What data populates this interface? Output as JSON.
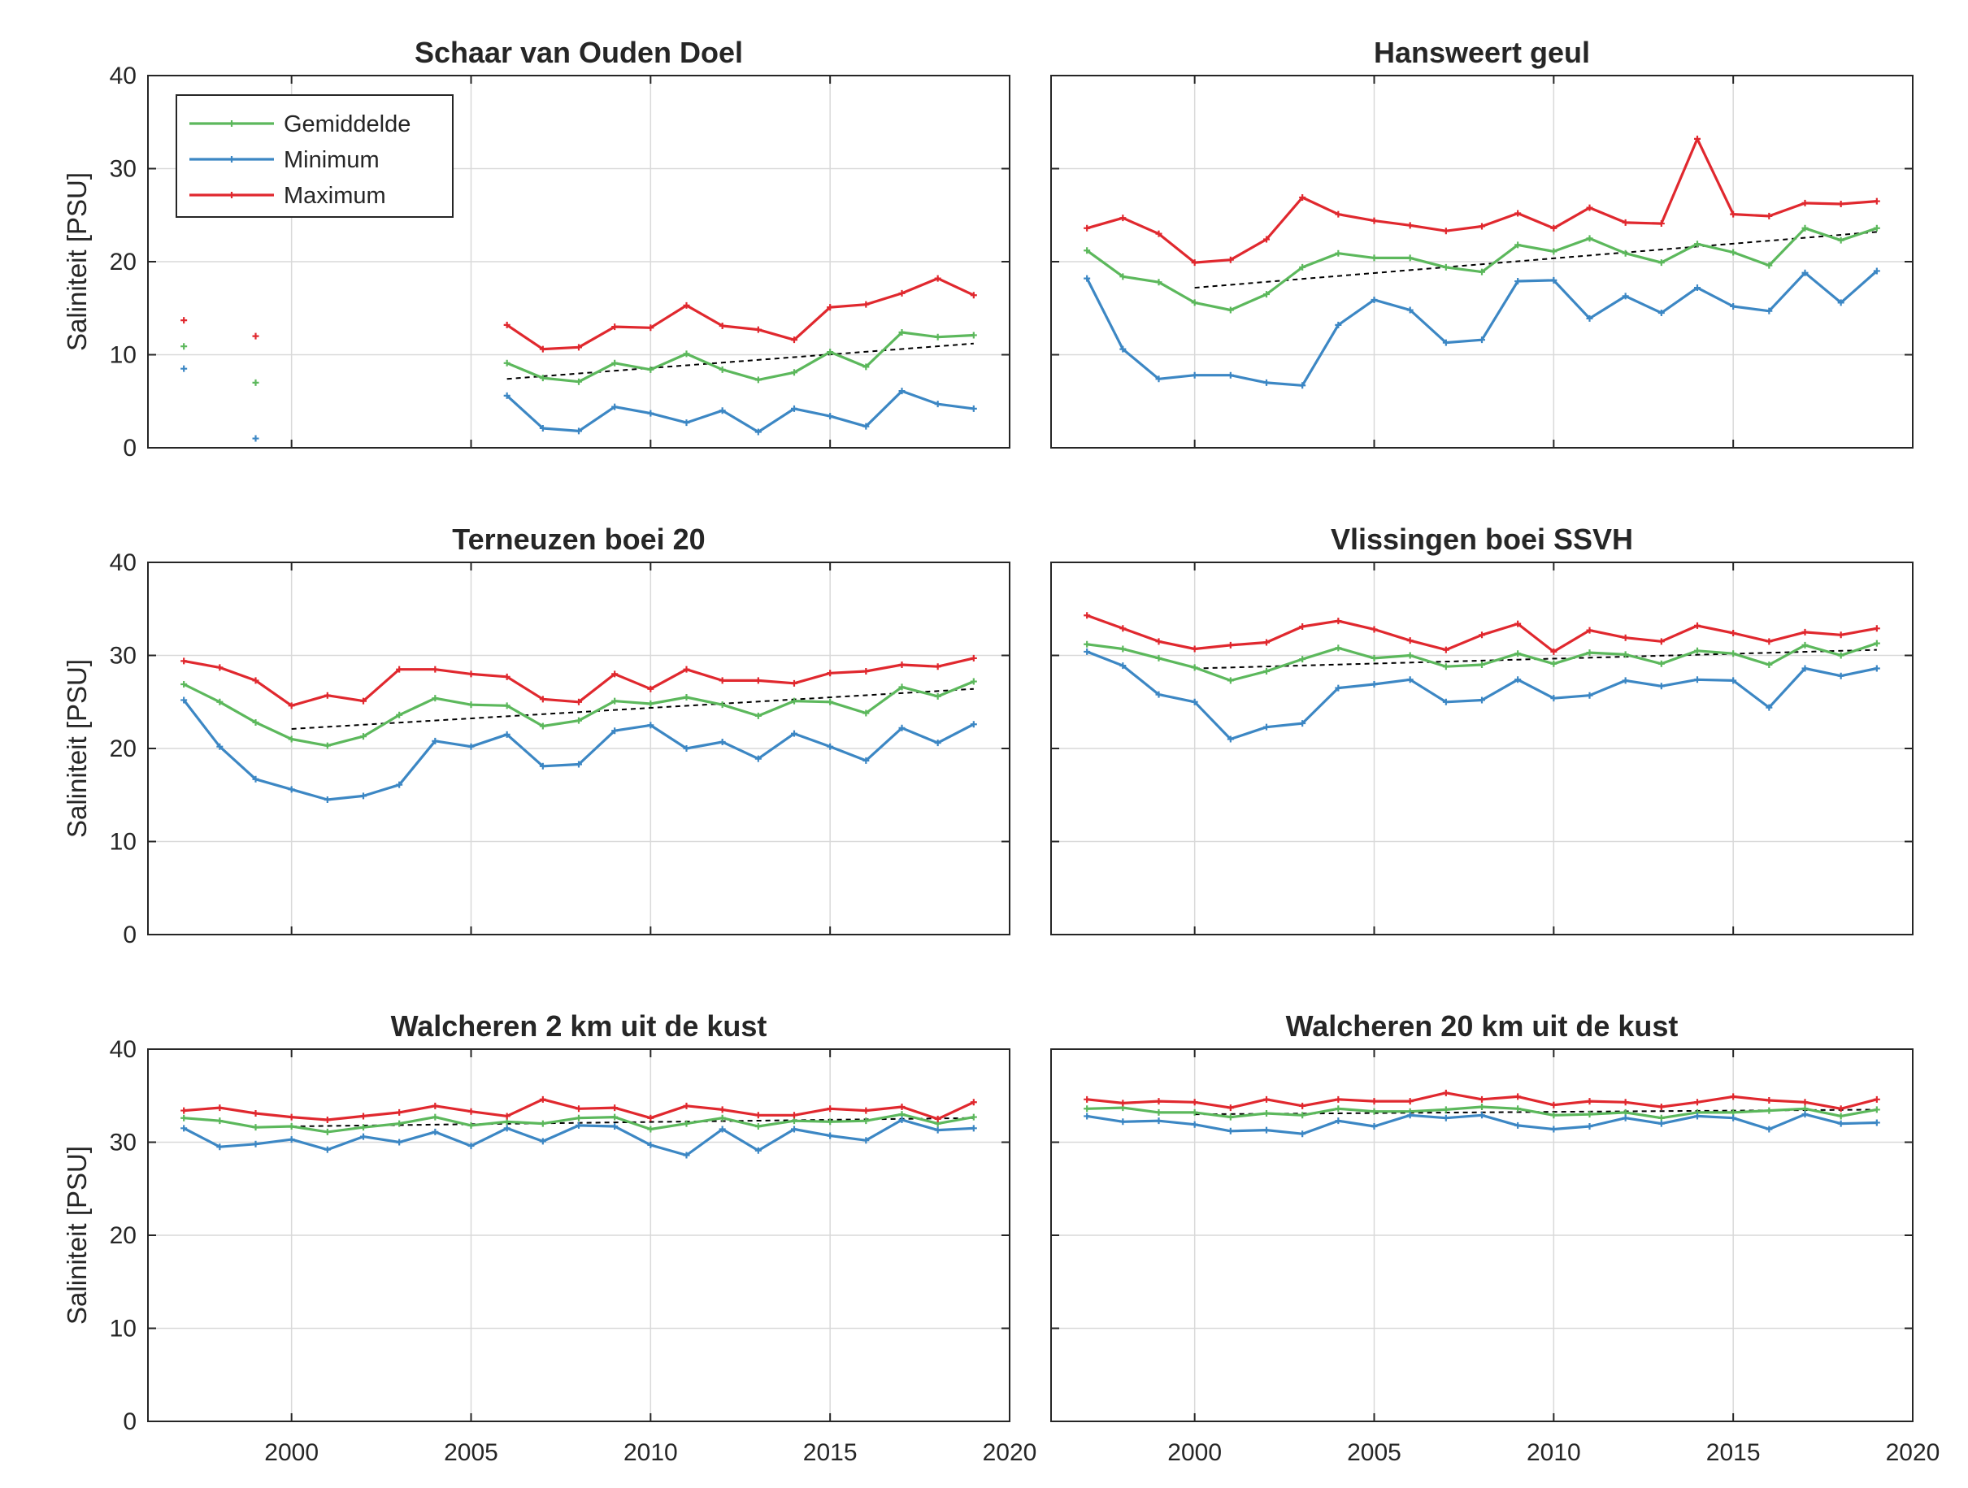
{
  "colors": {
    "Gemiddelde": "#5cb85c",
    "Minimum": "#3c87c4",
    "Maximum": "#e0282e",
    "trend": "#000000",
    "grid": "#d9d9d9",
    "axes": "#262626"
  },
  "legend": {
    "entries": [
      "Gemiddelde",
      "Minimum",
      "Maximum"
    ],
    "placement": "top-left of first panel"
  },
  "chart_data": [
    {
      "type": "line",
      "title": "Schaar van Ouden Doel",
      "ylabel": "Saliniteit [PSU]",
      "xlabel": "",
      "xlim": [
        1996,
        2020
      ],
      "ylim": [
        0,
        40
      ],
      "xticks": [
        2000,
        2005,
        2010,
        2015,
        2020
      ],
      "xtick_labels": [],
      "yticks": [
        0,
        10,
        20,
        30,
        40
      ],
      "ytick_labels": [
        "0",
        "10",
        "20",
        "30",
        "40"
      ],
      "grid": true,
      "x": [
        1997,
        1998,
        1999,
        2000,
        2001,
        2002,
        2003,
        2004,
        2005,
        2006,
        2007,
        2008,
        2009,
        2010,
        2011,
        2012,
        2013,
        2014,
        2015,
        2016,
        2017,
        2018,
        2019
      ],
      "series": [
        {
          "name": "Gemiddelde",
          "values": [
            10.9,
            null,
            7.0,
            null,
            null,
            null,
            null,
            null,
            null,
            9.1,
            7.5,
            7.1,
            9.1,
            8.4,
            10.1,
            8.4,
            7.3,
            8.1,
            10.3,
            8.7,
            12.4,
            11.9,
            12.1
          ]
        },
        {
          "name": "Minimum",
          "values": [
            8.5,
            null,
            1.0,
            null,
            null,
            null,
            null,
            null,
            null,
            5.6,
            2.1,
            1.8,
            4.4,
            3.7,
            2.7,
            4.0,
            1.7,
            4.2,
            3.4,
            2.3,
            6.1,
            4.7,
            4.2
          ]
        },
        {
          "name": "Maximum",
          "values": [
            13.7,
            null,
            12.0,
            null,
            null,
            null,
            null,
            null,
            null,
            13.2,
            10.6,
            10.8,
            13.0,
            12.9,
            15.3,
            13.1,
            12.7,
            11.6,
            15.1,
            15.4,
            16.6,
            18.2,
            16.4
          ]
        }
      ],
      "trend": {
        "x": [
          2006,
          2019
        ],
        "y": [
          7.4,
          11.2
        ]
      }
    },
    {
      "type": "line",
      "title": "Hansweert geul",
      "ylabel": "",
      "xlabel": "",
      "xlim": [
        1996,
        2020
      ],
      "ylim": [
        0,
        40
      ],
      "xticks": [
        2000,
        2005,
        2010,
        2015,
        2020
      ],
      "xtick_labels": [],
      "yticks": [
        0,
        10,
        20,
        30,
        40
      ],
      "ytick_labels": [],
      "grid": true,
      "x": [
        1997,
        1998,
        1999,
        2000,
        2001,
        2002,
        2003,
        2004,
        2005,
        2006,
        2007,
        2008,
        2009,
        2010,
        2011,
        2012,
        2013,
        2014,
        2015,
        2016,
        2017,
        2018,
        2019
      ],
      "series": [
        {
          "name": "Gemiddelde",
          "values": [
            21.2,
            18.4,
            17.8,
            15.6,
            14.8,
            16.5,
            19.4,
            20.9,
            20.4,
            20.4,
            19.4,
            18.9,
            21.8,
            21.1,
            22.5,
            20.9,
            19.9,
            21.9,
            21.0,
            19.6,
            23.6,
            22.3,
            23.6
          ]
        },
        {
          "name": "Minimum",
          "values": [
            18.2,
            10.6,
            7.4,
            7.8,
            7.8,
            7.0,
            6.7,
            13.2,
            15.9,
            14.8,
            11.3,
            11.6,
            17.9,
            18.0,
            13.9,
            16.3,
            14.5,
            17.2,
            15.2,
            14.7,
            18.8,
            15.6,
            19.0
          ]
        },
        {
          "name": "Maximum",
          "values": [
            23.6,
            24.7,
            23.0,
            19.9,
            20.2,
            22.4,
            26.9,
            25.1,
            24.4,
            23.9,
            23.3,
            23.8,
            25.2,
            23.6,
            25.8,
            24.2,
            24.1,
            33.2,
            25.1,
            24.9,
            26.3,
            26.2,
            26.5
          ]
        }
      ],
      "trend": {
        "x": [
          2000,
          2019
        ],
        "y": [
          17.2,
          23.2
        ]
      }
    },
    {
      "type": "line",
      "title": "Terneuzen boei 20",
      "ylabel": "Saliniteit [PSU]",
      "xlabel": "",
      "xlim": [
        1996,
        2020
      ],
      "ylim": [
        0,
        40
      ],
      "xticks": [
        2000,
        2005,
        2010,
        2015,
        2020
      ],
      "xtick_labels": [],
      "yticks": [
        0,
        10,
        20,
        30,
        40
      ],
      "ytick_labels": [
        "0",
        "10",
        "20",
        "30",
        "40"
      ],
      "grid": true,
      "x": [
        1997,
        1998,
        1999,
        2000,
        2001,
        2002,
        2003,
        2004,
        2005,
        2006,
        2007,
        2008,
        2009,
        2010,
        2011,
        2012,
        2013,
        2014,
        2015,
        2016,
        2017,
        2018,
        2019
      ],
      "series": [
        {
          "name": "Gemiddelde",
          "values": [
            26.9,
            25.0,
            22.8,
            21.0,
            20.3,
            21.3,
            23.6,
            25.4,
            24.7,
            24.6,
            22.4,
            23.0,
            25.1,
            24.8,
            25.5,
            24.7,
            23.5,
            25.1,
            25.0,
            23.8,
            26.6,
            25.6,
            27.2
          ]
        },
        {
          "name": "Minimum",
          "values": [
            25.2,
            20.2,
            16.7,
            15.6,
            14.5,
            14.9,
            16.1,
            20.8,
            20.2,
            21.5,
            18.1,
            18.3,
            21.9,
            22.5,
            20.0,
            20.7,
            18.9,
            21.6,
            20.2,
            18.7,
            22.2,
            20.6,
            22.6
          ]
        },
        {
          "name": "Maximum",
          "values": [
            29.4,
            28.7,
            27.3,
            24.6,
            25.7,
            25.1,
            28.5,
            28.5,
            28.0,
            27.7,
            25.3,
            25.0,
            28.0,
            26.4,
            28.5,
            27.3,
            27.3,
            27.0,
            28.1,
            28.3,
            29.0,
            28.8,
            29.7
          ]
        }
      ],
      "trend": {
        "x": [
          2000,
          2019
        ],
        "y": [
          22.1,
          26.4
        ]
      }
    },
    {
      "type": "line",
      "title": "Vlissingen boei SSVH",
      "ylabel": "",
      "xlabel": "",
      "xlim": [
        1996,
        2020
      ],
      "ylim": [
        0,
        40
      ],
      "xticks": [
        2000,
        2005,
        2010,
        2015,
        2020
      ],
      "xtick_labels": [],
      "yticks": [
        0,
        10,
        20,
        30,
        40
      ],
      "ytick_labels": [],
      "grid": true,
      "x": [
        1997,
        1998,
        1999,
        2000,
        2001,
        2002,
        2003,
        2004,
        2005,
        2006,
        2007,
        2008,
        2009,
        2010,
        2011,
        2012,
        2013,
        2014,
        2015,
        2016,
        2017,
        2018,
        2019
      ],
      "series": [
        {
          "name": "Gemiddelde",
          "values": [
            31.2,
            30.7,
            29.7,
            28.7,
            27.3,
            28.3,
            29.6,
            30.8,
            29.7,
            30.0,
            28.8,
            29.0,
            30.2,
            29.1,
            30.3,
            30.1,
            29.1,
            30.5,
            30.2,
            29.0,
            31.1,
            30.0,
            31.3
          ]
        },
        {
          "name": "Minimum",
          "values": [
            30.4,
            28.9,
            25.8,
            25.0,
            21.0,
            22.3,
            22.7,
            26.5,
            26.9,
            27.4,
            25.0,
            25.2,
            27.4,
            25.4,
            25.7,
            27.3,
            26.7,
            27.4,
            27.3,
            24.4,
            28.6,
            27.8,
            28.6
          ]
        },
        {
          "name": "Maximum",
          "values": [
            34.3,
            32.9,
            31.5,
            30.7,
            31.1,
            31.4,
            33.1,
            33.7,
            32.8,
            31.6,
            30.6,
            32.2,
            33.4,
            30.4,
            32.7,
            31.9,
            31.5,
            33.2,
            32.4,
            31.5,
            32.5,
            32.2,
            32.9
          ]
        }
      ],
      "trend": {
        "x": [
          2000,
          2019
        ],
        "y": [
          28.6,
          30.6
        ]
      }
    },
    {
      "type": "line",
      "title": "Walcheren 2 km uit de kust",
      "ylabel": "Saliniteit [PSU]",
      "xlabel": "",
      "xlim": [
        1996,
        2020
      ],
      "ylim": [
        0,
        40
      ],
      "xticks": [
        2000,
        2005,
        2010,
        2015,
        2020
      ],
      "xtick_labels": [
        "2000",
        "2005",
        "2010",
        "2015",
        "2020"
      ],
      "yticks": [
        0,
        10,
        20,
        30,
        40
      ],
      "ytick_labels": [
        "0",
        "10",
        "20",
        "30",
        "40"
      ],
      "grid": true,
      "x": [
        1997,
        1998,
        1999,
        2000,
        2001,
        2002,
        2003,
        2004,
        2005,
        2006,
        2007,
        2008,
        2009,
        2010,
        2011,
        2012,
        2013,
        2014,
        2015,
        2016,
        2017,
        2018,
        2019
      ],
      "series": [
        {
          "name": "Gemiddelde",
          "values": [
            32.6,
            32.3,
            31.6,
            31.7,
            31.1,
            31.6,
            32.0,
            32.7,
            31.8,
            32.2,
            32.0,
            32.6,
            32.7,
            31.4,
            32.0,
            32.6,
            31.7,
            32.3,
            32.2,
            32.3,
            33.0,
            32.0,
            32.7
          ]
        },
        {
          "name": "Minimum",
          "values": [
            31.5,
            29.5,
            29.8,
            30.3,
            29.2,
            30.6,
            30.0,
            31.1,
            29.6,
            31.5,
            30.1,
            31.8,
            31.7,
            29.7,
            28.6,
            31.4,
            29.1,
            31.4,
            30.7,
            30.2,
            32.4,
            31.3,
            31.5
          ]
        },
        {
          "name": "Maximum",
          "values": [
            33.4,
            33.7,
            33.1,
            32.7,
            32.4,
            32.8,
            33.2,
            33.9,
            33.3,
            32.8,
            34.6,
            33.6,
            33.7,
            32.6,
            33.9,
            33.5,
            32.9,
            32.9,
            33.6,
            33.4,
            33.8,
            32.5,
            34.3
          ]
        }
      ],
      "trend": {
        "x": [
          2000,
          2019
        ],
        "y": [
          31.7,
          32.6
        ]
      }
    },
    {
      "type": "line",
      "title": "Walcheren 20 km uit de kust",
      "ylabel": "",
      "xlabel": "",
      "xlim": [
        1996,
        2020
      ],
      "ylim": [
        0,
        40
      ],
      "xticks": [
        2000,
        2005,
        2010,
        2015,
        2020
      ],
      "xtick_labels": [
        "2000",
        "2005",
        "2010",
        "2015",
        "2020"
      ],
      "yticks": [
        0,
        10,
        20,
        30,
        40
      ],
      "ytick_labels": [],
      "grid": true,
      "x": [
        1997,
        1998,
        1999,
        2000,
        2001,
        2002,
        2003,
        2004,
        2005,
        2006,
        2007,
        2008,
        2009,
        2010,
        2011,
        2012,
        2013,
        2014,
        2015,
        2016,
        2017,
        2018,
        2019
      ],
      "series": [
        {
          "name": "Gemiddelde",
          "values": [
            33.6,
            33.7,
            33.2,
            33.2,
            32.7,
            33.1,
            32.9,
            33.6,
            33.3,
            33.3,
            33.5,
            33.8,
            33.6,
            32.9,
            33.0,
            33.2,
            32.6,
            33.2,
            33.2,
            33.4,
            33.6,
            32.8,
            33.5
          ]
        },
        {
          "name": "Minimum",
          "values": [
            32.8,
            32.2,
            32.3,
            31.9,
            31.2,
            31.3,
            30.9,
            32.3,
            31.7,
            32.9,
            32.6,
            32.9,
            31.8,
            31.4,
            31.7,
            32.6,
            32.0,
            32.8,
            32.6,
            31.4,
            33.0,
            32.0,
            32.1
          ]
        },
        {
          "name": "Maximum",
          "values": [
            34.6,
            34.2,
            34.4,
            34.3,
            33.7,
            34.6,
            33.9,
            34.6,
            34.4,
            34.4,
            35.3,
            34.6,
            34.9,
            34.0,
            34.4,
            34.3,
            33.8,
            34.3,
            34.9,
            34.5,
            34.3,
            33.6,
            34.6
          ]
        }
      ],
      "trend": {
        "x": [
          2000,
          2019
        ],
        "y": [
          33.0,
          33.5
        ]
      }
    }
  ]
}
